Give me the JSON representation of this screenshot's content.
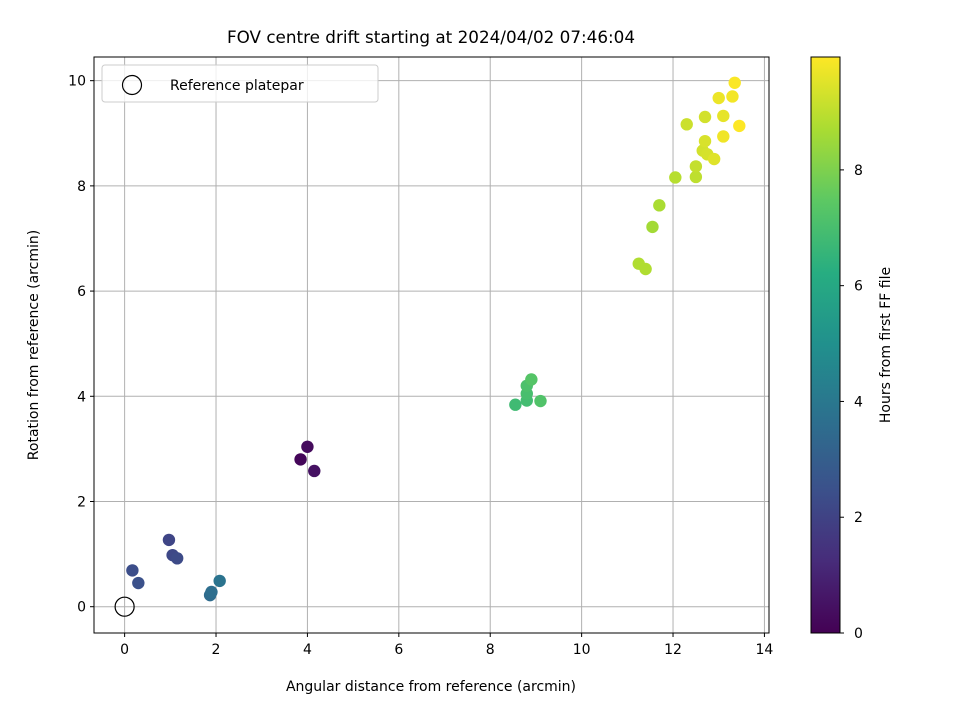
{
  "chart_data": {
    "type": "scatter",
    "title": "FOV centre drift starting at 2024/04/02 07:46:04",
    "xlabel": "Angular distance from reference (arcmin)",
    "ylabel": "Rotation from reference (arcmin)",
    "xlim": [
      -0.67,
      14.1
    ],
    "ylim": [
      -0.5,
      10.45
    ],
    "x_ticks": [
      0,
      2,
      4,
      6,
      8,
      10,
      12,
      14
    ],
    "y_ticks": [
      0,
      2,
      4,
      6,
      8,
      10
    ],
    "grid": true,
    "legend": {
      "placement": "top-left",
      "entries": [
        "Reference platepar"
      ]
    },
    "reference_point": {
      "x": 0,
      "y": 0,
      "label": "Reference platepar"
    },
    "colorbar": {
      "label": "Hours from first FF file",
      "colormap": "viridis",
      "range": [
        0,
        9.95
      ],
      "ticks": [
        0,
        2,
        4,
        6,
        8
      ]
    },
    "points": [
      {
        "x": 3.85,
        "y": 2.8,
        "c": 0.15
      },
      {
        "x": 4.0,
        "y": 3.04,
        "c": 0.3
      },
      {
        "x": 4.15,
        "y": 2.58,
        "c": 0.45
      },
      {
        "x": 0.97,
        "y": 1.27,
        "c": 2.1
      },
      {
        "x": 1.05,
        "y": 0.98,
        "c": 2.2
      },
      {
        "x": 1.15,
        "y": 0.92,
        "c": 2.3
      },
      {
        "x": 0.17,
        "y": 0.69,
        "c": 2.4
      },
      {
        "x": 0.3,
        "y": 0.45,
        "c": 2.5
      },
      {
        "x": 1.87,
        "y": 0.22,
        "c": 3.5
      },
      {
        "x": 1.9,
        "y": 0.28,
        "c": 3.6
      },
      {
        "x": 2.08,
        "y": 0.49,
        "c": 3.8
      },
      {
        "x": 8.55,
        "y": 3.84,
        "c": 6.8
      },
      {
        "x": 8.8,
        "y": 3.92,
        "c": 6.9
      },
      {
        "x": 8.8,
        "y": 4.05,
        "c": 7.0
      },
      {
        "x": 8.8,
        "y": 4.2,
        "c": 7.1
      },
      {
        "x": 8.9,
        "y": 4.32,
        "c": 7.3
      },
      {
        "x": 9.1,
        "y": 3.91,
        "c": 7.2
      },
      {
        "x": 11.25,
        "y": 6.52,
        "c": 8.8
      },
      {
        "x": 11.4,
        "y": 6.42,
        "c": 8.8
      },
      {
        "x": 11.55,
        "y": 7.22,
        "c": 8.6
      },
      {
        "x": 11.7,
        "y": 7.63,
        "c": 8.7
      },
      {
        "x": 12.05,
        "y": 8.16,
        "c": 8.9
      },
      {
        "x": 12.5,
        "y": 8.17,
        "c": 9.0
      },
      {
        "x": 12.5,
        "y": 8.37,
        "c": 9.1
      },
      {
        "x": 12.3,
        "y": 9.17,
        "c": 9.2
      },
      {
        "x": 12.65,
        "y": 8.67,
        "c": 9.3
      },
      {
        "x": 12.7,
        "y": 8.85,
        "c": 9.4
      },
      {
        "x": 12.75,
        "y": 8.6,
        "c": 9.35
      },
      {
        "x": 12.9,
        "y": 8.51,
        "c": 9.5
      },
      {
        "x": 12.7,
        "y": 9.31,
        "c": 9.3
      },
      {
        "x": 13.0,
        "y": 9.67,
        "c": 9.7
      },
      {
        "x": 13.1,
        "y": 9.33,
        "c": 9.6
      },
      {
        "x": 13.1,
        "y": 8.94,
        "c": 9.75
      },
      {
        "x": 13.3,
        "y": 9.7,
        "c": 9.8
      },
      {
        "x": 13.35,
        "y": 9.96,
        "c": 9.9
      },
      {
        "x": 13.45,
        "y": 9.14,
        "c": 9.95
      }
    ]
  }
}
